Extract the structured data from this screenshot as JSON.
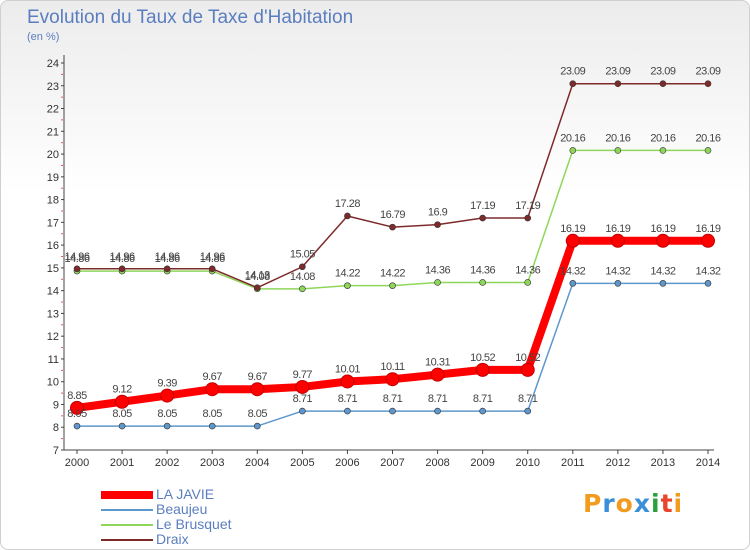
{
  "title": "Evolution du Taux de Taxe d'Habitation",
  "subtitle": "(en %)",
  "logo": {
    "text": "Proxiti",
    "letters": [
      {
        "ch": "P",
        "color": "#f29c1f"
      },
      {
        "ch": "r",
        "color": "#3a8fd9"
      },
      {
        "ch": "o",
        "color": "#f29c1f"
      },
      {
        "ch": "x",
        "color": "#3a8fd9"
      },
      {
        "ch": "i",
        "color": "#2a9f3f"
      },
      {
        "ch": "t",
        "color": "#e8452f"
      },
      {
        "ch": "i",
        "color": "#f29c1f"
      }
    ]
  },
  "chart_data": {
    "type": "line",
    "title": "Evolution du Taux de Taxe d'Habitation",
    "ylabel": "(en %)",
    "ylim": [
      7,
      24
    ],
    "y_ticks": [
      7,
      8,
      9,
      10,
      11,
      12,
      13,
      14,
      15,
      16,
      17,
      18,
      19,
      20,
      21,
      22,
      23,
      24
    ],
    "x": [
      "2000",
      "2001",
      "2002",
      "2003",
      "2004",
      "2005",
      "2006",
      "2007",
      "2008",
      "2009",
      "2010",
      "2011",
      "2012",
      "2013",
      "2014"
    ],
    "grid": false,
    "legend_position": "bottom-left",
    "series": [
      {
        "name": "LA JAVIE",
        "color": "#ff0000",
        "emphasis": true,
        "values": [
          8.85,
          9.12,
          9.39,
          9.67,
          9.67,
          9.77,
          10.01,
          10.11,
          10.31,
          10.52,
          10.52,
          16.19,
          16.19,
          16.19,
          16.19
        ]
      },
      {
        "name": "Beaujeu",
        "color": "#5e97cc",
        "values": [
          8.05,
          8.05,
          8.05,
          8.05,
          8.05,
          8.71,
          8.71,
          8.71,
          8.71,
          8.71,
          8.71,
          14.32,
          14.32,
          14.32,
          14.32
        ]
      },
      {
        "name": "Le Brusquet",
        "color": "#8ed65a",
        "values": [
          14.86,
          14.86,
          14.86,
          14.86,
          14.08,
          14.08,
          14.22,
          14.22,
          14.36,
          14.36,
          14.36,
          20.16,
          20.16,
          20.16,
          20.16
        ]
      },
      {
        "name": "Draix",
        "color": "#7d2a2a",
        "values": [
          14.96,
          14.96,
          14.96,
          14.96,
          14.13,
          15.05,
          17.28,
          16.79,
          16.9,
          17.19,
          17.19,
          23.09,
          23.09,
          23.09,
          23.09
        ]
      }
    ]
  }
}
